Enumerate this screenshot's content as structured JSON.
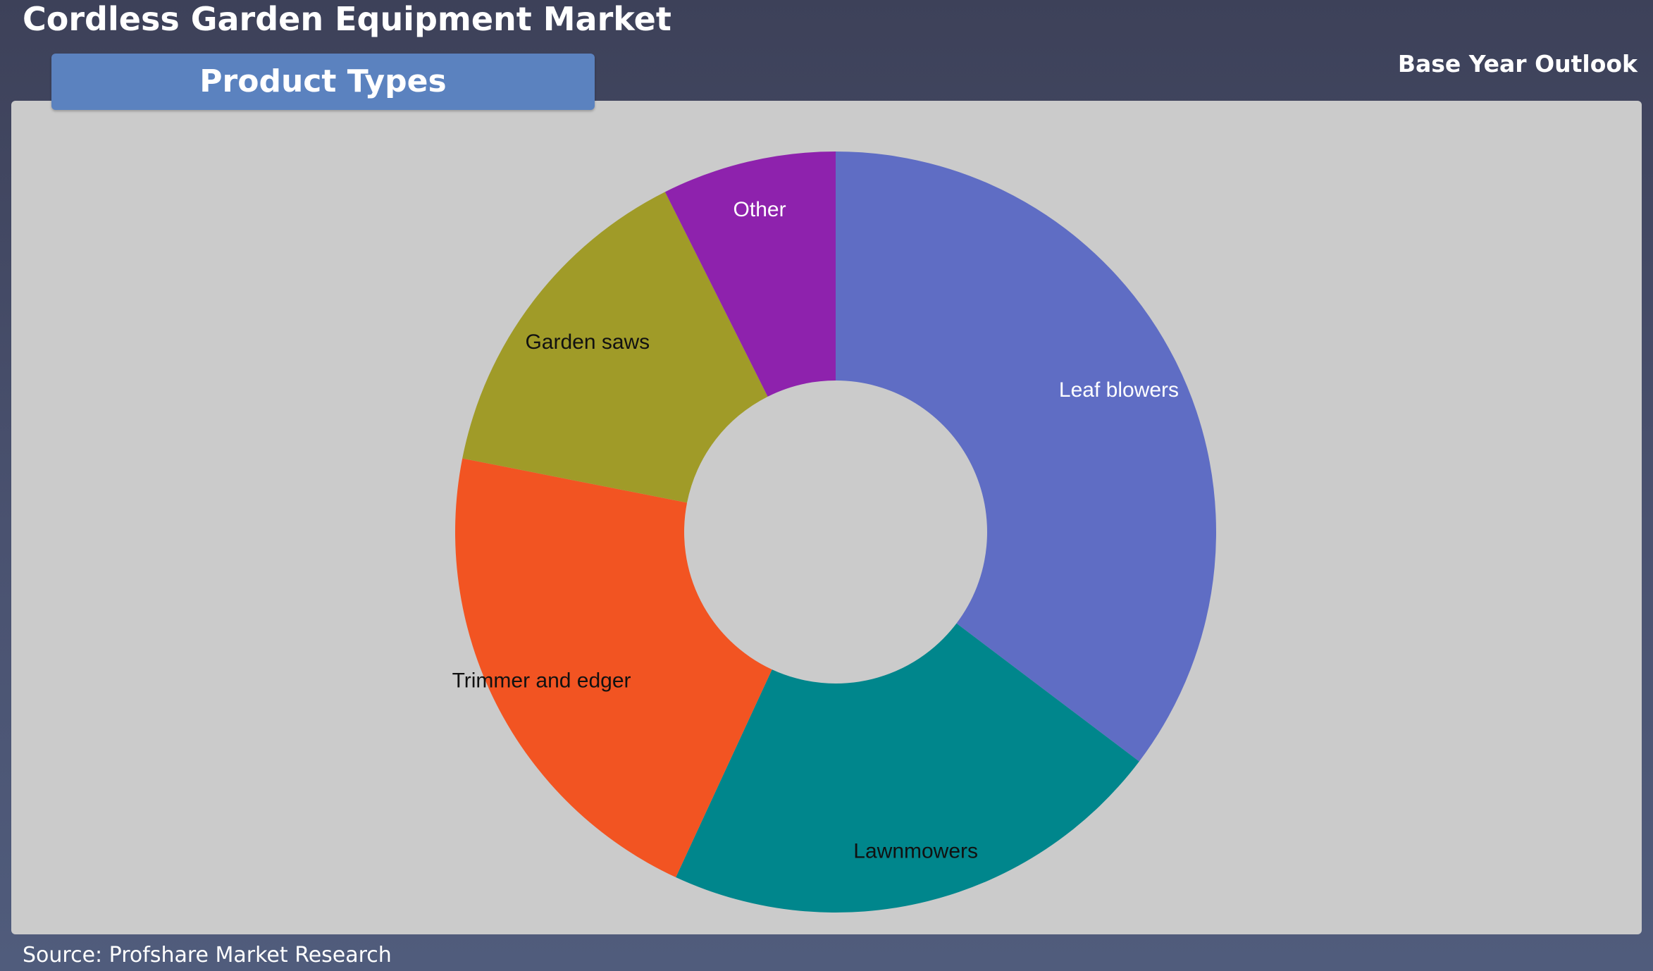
{
  "header": {
    "title": "Cordless Garden Equipment Market",
    "outlook": "Base Year Outlook",
    "tab_label": "Product Types"
  },
  "footer": {
    "source": "Source: Profshare Market Research"
  },
  "colors": {
    "panel_background": "#cbcbcb",
    "tab_background": "#5b82bf",
    "page_background": "#45495f"
  },
  "chart_data": {
    "type": "pie",
    "donut": true,
    "title": "",
    "slices": [
      {
        "label": "Leaf blowers",
        "value": 35.3,
        "color": "#5f6dc4",
        "label_color": "#ffffff"
      },
      {
        "label": "Lawnmowers",
        "value": 21.6,
        "color": "#00868c",
        "label_color": "#111111"
      },
      {
        "label": "Trimmer and edger",
        "value": 21.2,
        "color": "#f25422",
        "label_color": "#111111"
      },
      {
        "label": "Garden saws",
        "value": 14.5,
        "color": "#a09b28",
        "label_color": "#111111"
      },
      {
        "label": "Other",
        "value": 7.4,
        "color": "#8e22ad",
        "label_color": "#ffffff"
      }
    ],
    "start_angle": "12 o'clock",
    "direction": "clockwise",
    "legend": "none (labels on slices)"
  }
}
